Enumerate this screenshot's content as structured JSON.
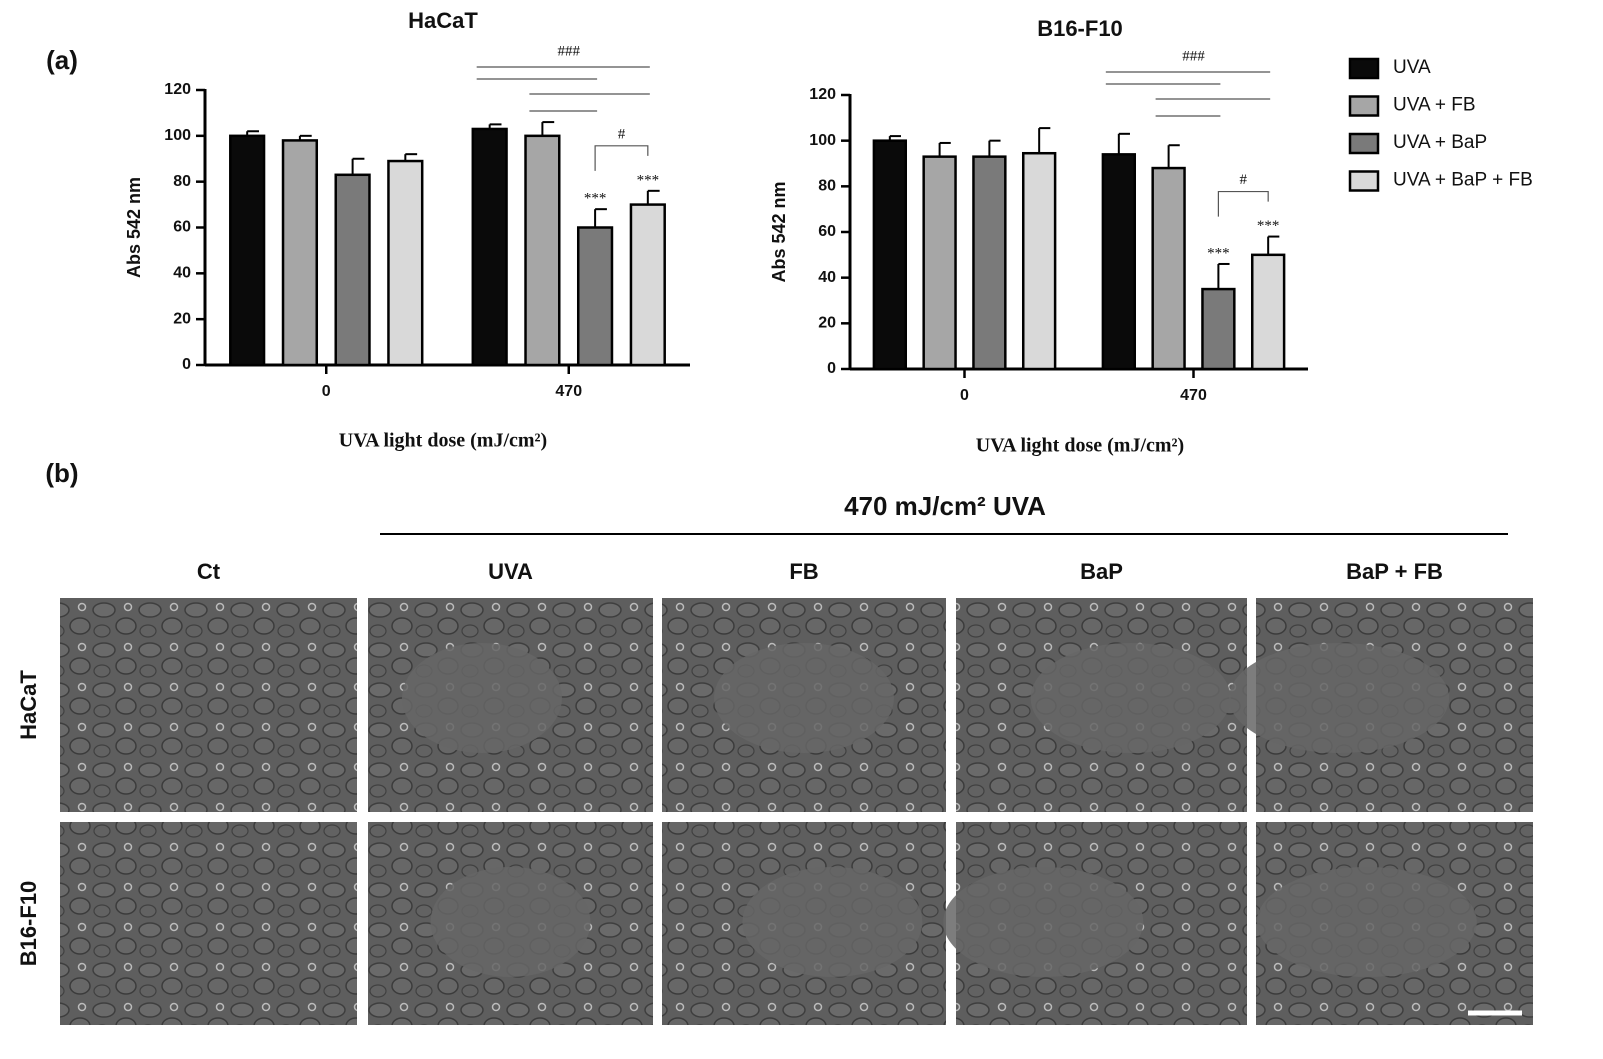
{
  "panel_labels": [
    "(a)",
    "(b)"
  ],
  "chart_data": [
    {
      "type": "bar",
      "title": "HaCaT",
      "y_label": "Abs 542 nm",
      "x_label": "UVA light dose (mJ/cm²)",
      "categories": [
        "0",
        "470"
      ],
      "ylim": [
        0,
        120
      ],
      "yticks": [
        0,
        20,
        40,
        60,
        80,
        100,
        120
      ],
      "significance": [
        "###",
        "#"
      ],
      "series": [
        {
          "name": "UVA",
          "color": "#0a0a0a",
          "values": [
            100,
            103
          ],
          "errors": [
            2,
            2
          ],
          "annotations": [
            null,
            null
          ]
        },
        {
          "name": "UVA + FB",
          "color": "#a6a6a6",
          "values": [
            98,
            100
          ],
          "errors": [
            2,
            6
          ],
          "annotations": [
            null,
            null
          ]
        },
        {
          "name": "UVA + BaP",
          "color": "#7a7a7a",
          "values": [
            83,
            60
          ],
          "errors": [
            7,
            8
          ],
          "annotations": [
            null,
            "***"
          ]
        },
        {
          "name": "UVA + BaP + FB",
          "color": "#d9d9d9",
          "values": [
            89,
            70
          ],
          "errors": [
            3,
            6
          ],
          "annotations": [
            null,
            "***"
          ]
        }
      ]
    },
    {
      "type": "bar",
      "title": "B16-F10",
      "y_label": "Abs 542 nm",
      "x_label": "UVA light dose (mJ/cm²)",
      "categories": [
        "0",
        "470"
      ],
      "ylim": [
        0,
        120
      ],
      "yticks": [
        0,
        20,
        40,
        60,
        80,
        100,
        120
      ],
      "significance": [
        "###",
        "#"
      ],
      "series": [
        {
          "color": "#0a0a0a",
          "values": [
            100,
            94
          ],
          "errors": [
            2,
            9
          ],
          "annotations": [
            null,
            null
          ]
        },
        {
          "color": "#a6a6a6",
          "values": [
            93,
            88
          ],
          "errors": [
            6,
            10
          ],
          "annotations": [
            null,
            null
          ]
        },
        {
          "color": "#7a7a7a",
          "values": [
            93,
            35
          ],
          "errors": [
            7,
            11
          ],
          "annotations": [
            null,
            "***"
          ]
        },
        {
          "color": "#d9d9d9",
          "values": [
            94.5,
            50
          ],
          "errors": [
            11,
            8
          ],
          "annotations": [
            null,
            "***"
          ]
        }
      ]
    }
  ],
  "micrographs": {
    "title": "470 mJ/cm² UVA",
    "columns": [
      "Ct",
      "UVA",
      "FB",
      "BaP",
      "BaP + FB"
    ],
    "rows": [
      "HaCaT",
      "B16-F10"
    ]
  }
}
